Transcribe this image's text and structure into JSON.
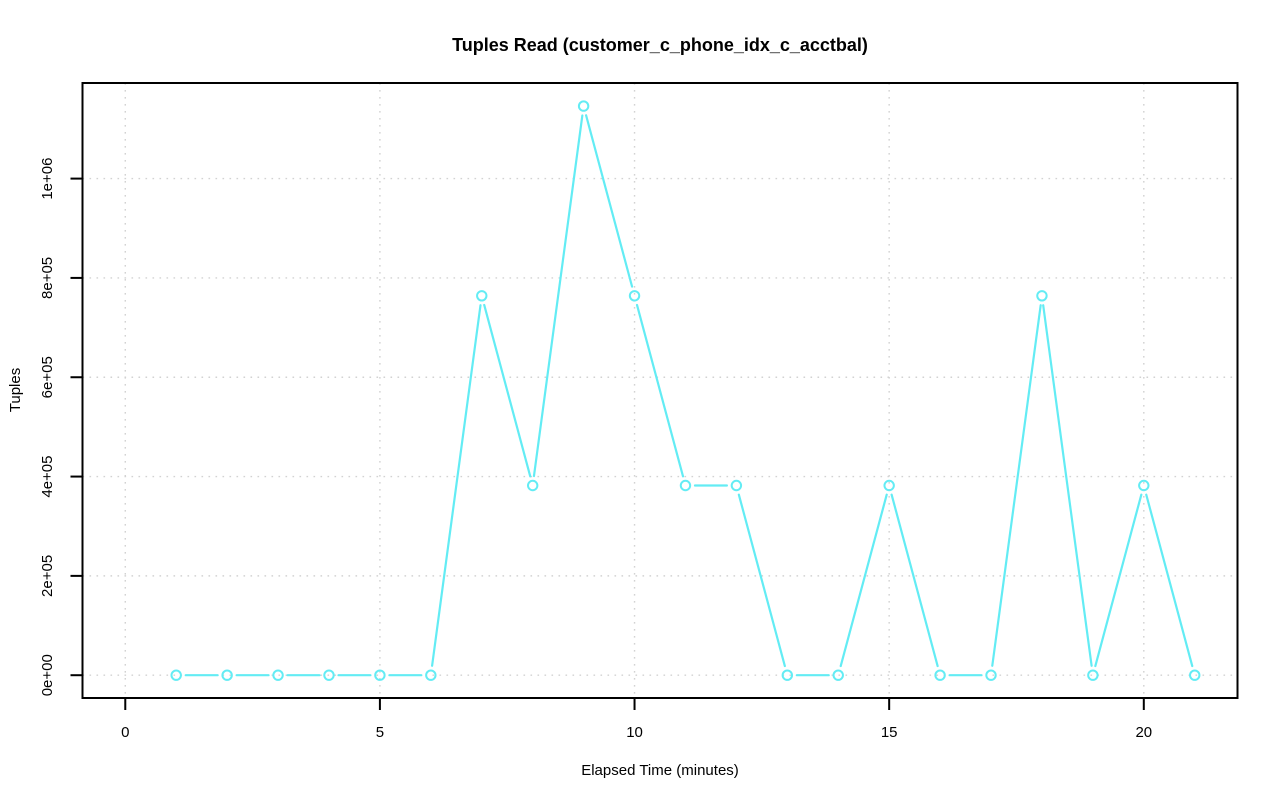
{
  "chart_data": {
    "type": "line",
    "title": "Tuples Read (customer_c_phone_idx_c_acctbal)",
    "xlabel": "Elapsed Time (minutes)",
    "ylabel": "Tuples",
    "x": [
      1,
      2,
      3,
      4,
      5,
      6,
      7,
      8,
      9,
      10,
      11,
      12,
      13,
      14,
      15,
      16,
      17,
      18,
      19,
      20,
      21
    ],
    "series": [
      {
        "name": "tuples-read",
        "color": "#63ecf4",
        "marker": "open-circle",
        "line_style": "segments-with-point-gaps",
        "values": [
          0,
          0,
          0,
          0,
          0,
          0,
          764000,
          382000,
          1146000,
          764000,
          382000,
          382000,
          0,
          0,
          382000,
          0,
          0,
          764000,
          0,
          382000,
          0
        ]
      }
    ],
    "x_ticks": [
      0,
      5,
      10,
      15,
      20
    ],
    "y_ticks": [
      {
        "value": 0,
        "label": "0e+00"
      },
      {
        "value": 200000,
        "label": "2e+05"
      },
      {
        "value": 400000,
        "label": "4e+05"
      },
      {
        "value": 600000,
        "label": "6e+05"
      },
      {
        "value": 800000,
        "label": "8e+05"
      },
      {
        "value": 1000000,
        "label": "1e+06"
      }
    ],
    "xlim": [
      -0.84,
      21.84
    ],
    "ylim": [
      -45900,
      1192500
    ],
    "grid": true,
    "grid_style": "dotted",
    "grid_color": "#d2d2d2",
    "axis_color": "#000000",
    "background": "#ffffff",
    "legend": "none"
  }
}
